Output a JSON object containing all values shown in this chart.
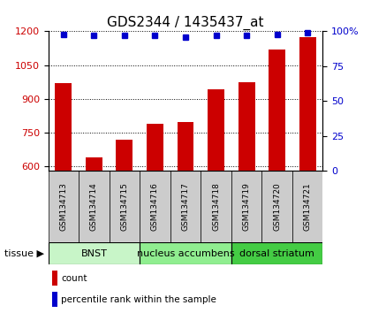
{
  "title": "GDS2344 / 1435437_at",
  "samples": [
    "GSM134713",
    "GSM134714",
    "GSM134715",
    "GSM134716",
    "GSM134717",
    "GSM134718",
    "GSM134719",
    "GSM134720",
    "GSM134721"
  ],
  "counts": [
    970,
    637,
    718,
    790,
    795,
    940,
    975,
    1120,
    1175
  ],
  "percentiles": [
    98,
    97,
    97,
    97,
    96,
    97,
    97,
    98,
    99
  ],
  "ylim_left": [
    580,
    1200
  ],
  "ylim_right": [
    0,
    100
  ],
  "yticks_left": [
    600,
    750,
    900,
    1050,
    1200
  ],
  "yticks_right": [
    0,
    25,
    50,
    75,
    100
  ],
  "bar_color": "#cc0000",
  "dot_color": "#0000cc",
  "tissue_groups": [
    {
      "label": "BNST",
      "start": 0,
      "end": 3,
      "color": "#c8f5c8"
    },
    {
      "label": "nucleus accumbens",
      "start": 3,
      "end": 6,
      "color": "#90ee90"
    },
    {
      "label": "dorsal striatum",
      "start": 6,
      "end": 9,
      "color": "#44cc44"
    }
  ],
  "sample_bg_color": "#cccccc",
  "background_color": "#ffffff",
  "title_fontsize": 11,
  "tick_fontsize": 8,
  "sample_fontsize": 6.5,
  "tissue_fontsize": 8,
  "legend_fontsize": 7.5
}
